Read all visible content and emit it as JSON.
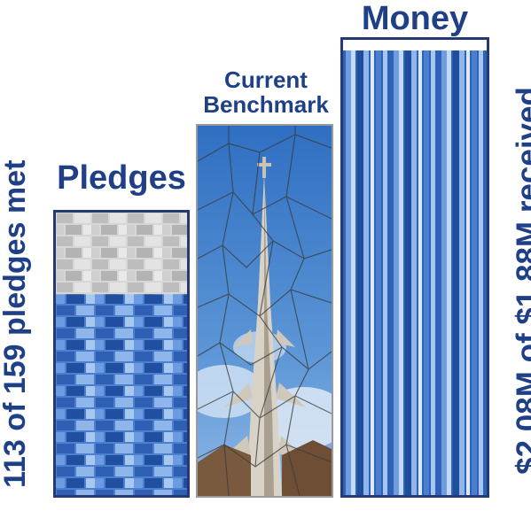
{
  "chart_data": {
    "type": "bar",
    "panels": [
      {
        "title": "Pledges",
        "side_label": "113 of 159 pledges met",
        "value": 113,
        "goal": 159,
        "fill_color": "#3d6fc0",
        "empty_color": "#c9c9c9"
      },
      {
        "title": "Current Benchmark",
        "title_lines": [
          "Current",
          "Benchmark"
        ],
        "image": "stained-glass church spire against blue sky"
      },
      {
        "title": "Money",
        "side_label": "$2.08M of $1.88M received",
        "value": 2.08,
        "goal": 1.88,
        "unit": "$M",
        "fill_color": "#3d6fc0"
      }
    ]
  },
  "colors": {
    "text": "#1f3f86",
    "border": "#253a73",
    "sky": "#3a78c6",
    "spire": "#d9d3c7",
    "brick": "#7a5a3e"
  }
}
